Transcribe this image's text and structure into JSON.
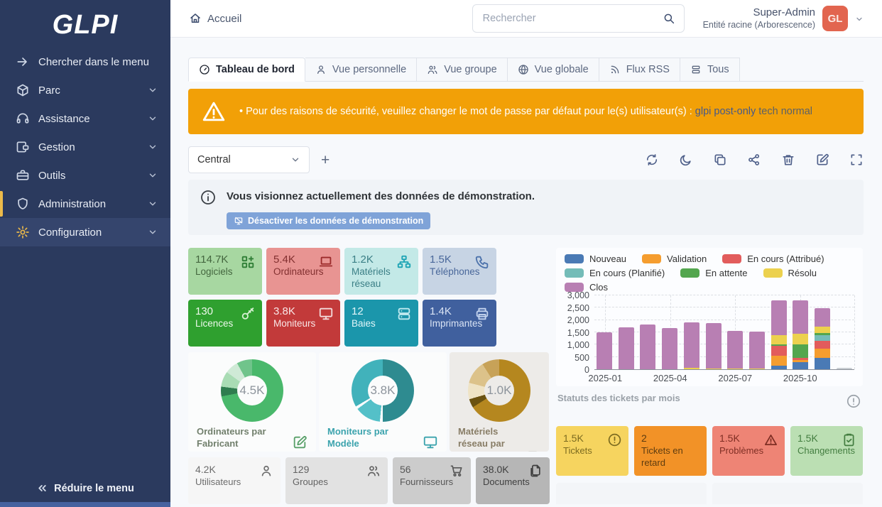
{
  "sidebar": {
    "logo": "GLPI",
    "items": [
      {
        "label": "Chercher dans le menu",
        "icon": "arrow-right-icon"
      },
      {
        "label": "Parc",
        "icon": "package-icon"
      },
      {
        "label": "Assistance",
        "icon": "headset-icon"
      },
      {
        "label": "Gestion",
        "icon": "wallet-icon"
      },
      {
        "label": "Outils",
        "icon": "briefcase-icon"
      },
      {
        "label": "Administration",
        "icon": "shield-icon",
        "active": true
      },
      {
        "label": "Configuration",
        "icon": "gear-icon",
        "highlighted": true
      }
    ],
    "collapse_label": "Réduire le menu"
  },
  "topbar": {
    "breadcrumb": "Accueil",
    "search_placeholder": "Rechercher",
    "user": {
      "name": "Super-Admin",
      "entity": "Entité racine (Arborescence)",
      "initials": "GL",
      "avatar_color": "#e2654f"
    }
  },
  "tabs": [
    {
      "label": "Tableau de bord",
      "icon": "gauge-icon",
      "active": true
    },
    {
      "label": "Vue personnelle",
      "icon": "user-icon"
    },
    {
      "label": "Vue groupe",
      "icon": "users-icon"
    },
    {
      "label": "Vue globale",
      "icon": "globe-icon"
    },
    {
      "label": "Flux RSS",
      "icon": "rss-icon"
    },
    {
      "label": "Tous",
      "icon": "stack-icon"
    }
  ],
  "warning_banner": {
    "color": "#f2a007",
    "bullet": "•",
    "text": "Pour des raisons de sécurité, veuillez changer le mot de passe par défaut pour le(s) utilisateur(s) :",
    "links": [
      "glpi post-only",
      "tech normal"
    ]
  },
  "dashboard_toolbar": {
    "selected_dashboard": "Central",
    "add_label": "+",
    "icons": [
      "refresh",
      "dark-mode",
      "clone",
      "share",
      "trash",
      "edit",
      "fullscreen"
    ]
  },
  "demo_notice": {
    "message": "Vous visionnez actuellement des données de démonstration.",
    "button_label": "Désactiver les données de démonstration"
  },
  "stat_cards": [
    {
      "value": "114.7K",
      "label": "Logiciels",
      "icon": "apps-icon",
      "bg": "#a7d7a1",
      "fg": "#44663f",
      "icon_color": "#2e7d35"
    },
    {
      "value": "5.4K",
      "label": "Ordinateurs",
      "icon": "laptop-icon",
      "bg": "#e89492",
      "fg": "#823030",
      "icon_color": "#9c2b2b"
    },
    {
      "value": "1.2K",
      "label": "Matériels réseau",
      "icon": "network-icon",
      "bg": "#c3e9e7",
      "fg": "#3b7f86",
      "icon_color": "#1ba3b4"
    },
    {
      "value": "1.5K",
      "label": "Téléphones",
      "icon": "phone-icon",
      "bg": "#c7d4e4",
      "fg": "#49679a",
      "icon_color": "#4c72ab"
    },
    {
      "value": "130",
      "label": "Licences",
      "icon": "key-icon",
      "bg": "#2fa02f",
      "fg": "#eef9ec",
      "icon_color": "#d6f0d2"
    },
    {
      "value": "3.8K",
      "label": "Moniteurs",
      "icon": "monitor-icon",
      "bg": "#c23a3a",
      "fg": "#f8e7e7",
      "icon_color": "#f3dada"
    },
    {
      "value": "12",
      "label": "Baies",
      "icon": "server-icon",
      "bg": "#1b96ab",
      "fg": "#e2f6f9",
      "icon_color": "#bfe9ef"
    },
    {
      "value": "1.4K",
      "label": "Imprimantes",
      "icon": "printer-icon",
      "bg": "#40609e",
      "fg": "#d9e3f4",
      "icon_color": "#c3d3ee"
    }
  ],
  "donut_cards": [
    {
      "value": "4.5K",
      "title": "Ordinateurs par Fabricant",
      "icon": "edit-icon",
      "bg": "#fbfcfc",
      "title_color": "#72806d",
      "icon_color": "#58a069",
      "segments": [
        {
          "color": "#49b86b",
          "fraction": 0.72
        },
        {
          "color": "#2f7d4f",
          "fraction": 0.05
        },
        {
          "color": "#a9dcb4",
          "fraction": 0.08
        },
        {
          "color": "#cfead6",
          "fraction": 0.07
        },
        {
          "color": "#70c48b",
          "fraction": 0.08
        }
      ]
    },
    {
      "value": "3.8K",
      "title": "Moniteurs par Modèle",
      "icon": "monitor-icon",
      "bg": "#fbfcfc",
      "title_color": "#3ba3ad",
      "icon_color": "#3ba3ad",
      "segments": [
        {
          "color": "#2e8b90",
          "fraction": 0.5
        },
        {
          "color": "#f8fbfc",
          "fraction": 0.015
        },
        {
          "color": "#54c0c8",
          "fraction": 0.135
        },
        {
          "color": "#f8fbfc",
          "fraction": 0.015
        },
        {
          "color": "#41b2bb",
          "fraction": 0.335
        }
      ]
    },
    {
      "value": "1.0K",
      "title": "Matériels réseau par Statut",
      "icon": "device-icon",
      "bg": "#edebe8",
      "title_color": "#887d66",
      "icon_color": "#6f6a5f",
      "segments": [
        {
          "color": "#b5871f",
          "fraction": 0.66
        },
        {
          "color": "#6b5210",
          "fraction": 0.045
        },
        {
          "color": "#efe3c5",
          "fraction": 0.085
        },
        {
          "color": "#dcc28a",
          "fraction": 0.12
        },
        {
          "color": "#c7a258",
          "fraction": 0.09
        }
      ]
    }
  ],
  "chart_data": {
    "type": "stacked-bar",
    "title": "Statuts des tickets par mois",
    "categories": [
      "2025-01",
      "2025-02",
      "2025-03",
      "2025-04",
      "2025-05",
      "2025-06",
      "2025-07",
      "2025-08",
      "2025-09",
      "2025-10",
      "2025-11",
      "2025-12"
    ],
    "x_tick_labels": [
      "2025-01",
      "2025-04",
      "2025-07",
      "2025-10"
    ],
    "x_tick_positions": [
      0,
      3,
      6,
      9
    ],
    "y_ticks": [
      0,
      500,
      1000,
      1500,
      2000,
      2500,
      3000
    ],
    "ylim": [
      0,
      3000
    ],
    "grid": true,
    "legend_position": "top",
    "series": [
      {
        "name": "Nouveau",
        "color": "#4a7ab5",
        "values": [
          0,
          0,
          0,
          0,
          0,
          0,
          0,
          0,
          150,
          280,
          450,
          0
        ]
      },
      {
        "name": "Validation",
        "color": "#f59d2f",
        "values": [
          0,
          0,
          0,
          0,
          0,
          0,
          0,
          0,
          400,
          90,
          380,
          0
        ]
      },
      {
        "name": "En cours (Attribué)",
        "color": "#e25c5c",
        "values": [
          0,
          0,
          0,
          0,
          0,
          0,
          0,
          0,
          400,
          90,
          330,
          0
        ]
      },
      {
        "name": "En cours (Planifié)",
        "color": "#74bcb8",
        "values": [
          0,
          0,
          0,
          0,
          0,
          0,
          0,
          0,
          0,
          0,
          230,
          0
        ]
      },
      {
        "name": "En attente",
        "color": "#53a64e",
        "values": [
          0,
          0,
          0,
          0,
          0,
          0,
          0,
          0,
          60,
          560,
          90,
          0
        ]
      },
      {
        "name": "Résolu",
        "color": "#ecd14e",
        "values": [
          0,
          0,
          0,
          0,
          60,
          40,
          30,
          30,
          390,
          430,
          240,
          0
        ]
      },
      {
        "name": "Clos",
        "color": "#b87fb3",
        "values": [
          1500,
          1700,
          1810,
          1680,
          1840,
          1850,
          1530,
          1510,
          1400,
          1350,
          760,
          0
        ]
      },
      {
        "name": "",
        "color": "#c9ced3",
        "values": [
          0,
          0,
          0,
          0,
          0,
          0,
          0,
          0,
          0,
          0,
          0,
          60
        ]
      }
    ]
  },
  "ticket_cards": [
    {
      "value": "1.5K",
      "label": "Tickets",
      "icon": "alert-circle-icon",
      "bg": "#f6d45f",
      "fg": "#7c6b20"
    },
    {
      "value": "2",
      "label": "Tickets en retard",
      "icon": "",
      "bg": "#f29227",
      "fg": "#5d3c10"
    },
    {
      "value": "1.5K",
      "label": "Problèmes",
      "icon": "alert-triangle-icon",
      "bg": "#ee8475",
      "fg": "#7f2e24"
    },
    {
      "value": "1.5K",
      "label": "Changements",
      "icon": "clipboard-check-icon",
      "bg": "#bbdfb3",
      "fg": "#447e41"
    }
  ],
  "footer_cards": [
    {
      "value": "4.2K",
      "label": "Utilisateurs",
      "icon": "user-icon",
      "bg": "#f6f6f6",
      "fg": "#6d6d6d"
    },
    {
      "value": "129",
      "label": "Groupes",
      "icon": "users-icon",
      "bg": "#e2e2e2",
      "fg": "#636363"
    },
    {
      "value": "56",
      "label": "Fournisseurs",
      "icon": "cart-icon",
      "bg": "#cccccc",
      "fg": "#575757"
    },
    {
      "value": "38.0K",
      "label": "Documents",
      "icon": "files-icon",
      "bg": "#b6b6b6",
      "fg": "#3f3f3f"
    }
  ]
}
